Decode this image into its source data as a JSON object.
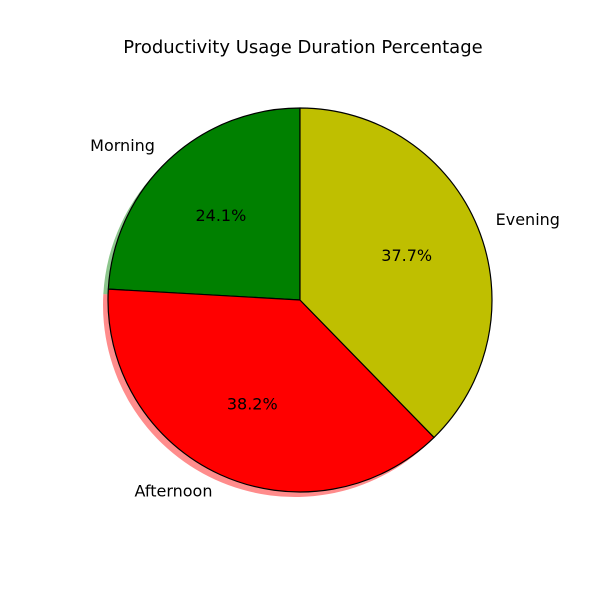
{
  "chart_data": {
    "type": "pie",
    "title": "Productivity Usage Duration Percentage",
    "categories": [
      "Morning",
      "Afternoon",
      "Evening"
    ],
    "values": [
      24.1,
      38.2,
      37.7
    ],
    "percent_labels": [
      "24.1%",
      "38.2%",
      "37.7%"
    ],
    "colors": [
      "#008000",
      "#ff0000",
      "#bfbf00"
    ],
    "edge_color": "#000000",
    "shadow": true,
    "start_angle_deg": 90,
    "direction": "counterclockwise"
  }
}
